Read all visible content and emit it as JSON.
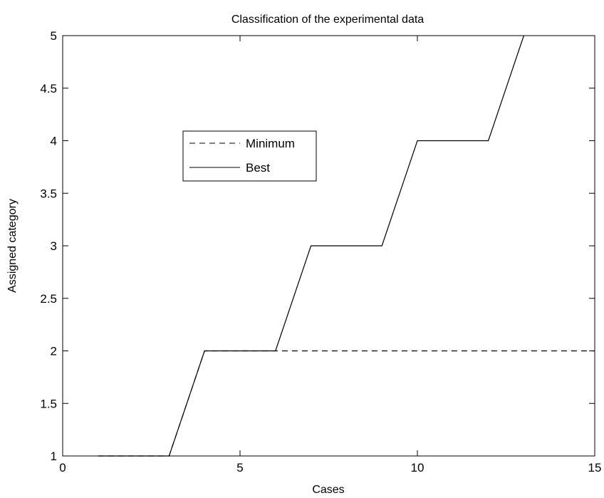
{
  "chart_data": {
    "type": "line",
    "title": "Classification of the experimental data",
    "xlabel": "Cases",
    "ylabel": "Assigned category",
    "xlim": [
      0,
      15
    ],
    "ylim": [
      1,
      5
    ],
    "xticks": [
      "0",
      "5",
      "10",
      "15"
    ],
    "yticks": [
      "1",
      "1.5",
      "2",
      "2.5",
      "3",
      "3.5",
      "4",
      "4.5",
      "5"
    ],
    "grid": false,
    "legend_position": "center-left",
    "series": [
      {
        "name": "Minimum",
        "style": "dashed",
        "color": "#000000",
        "x": [
          1,
          2,
          3,
          4,
          5,
          6,
          7,
          8,
          9,
          10,
          11,
          12,
          13,
          14,
          15
        ],
        "y": [
          1,
          1,
          1,
          2,
          2,
          2,
          2,
          2,
          2,
          2,
          2,
          2,
          2,
          2,
          2
        ]
      },
      {
        "name": "Best",
        "style": "solid",
        "color": "#000000",
        "x": [
          1,
          2,
          3,
          4,
          5,
          6,
          7,
          8,
          9,
          10,
          11,
          12,
          13
        ],
        "y": [
          1,
          1,
          1,
          2,
          2,
          2,
          3,
          3,
          3,
          4,
          4,
          4,
          5
        ]
      }
    ]
  }
}
